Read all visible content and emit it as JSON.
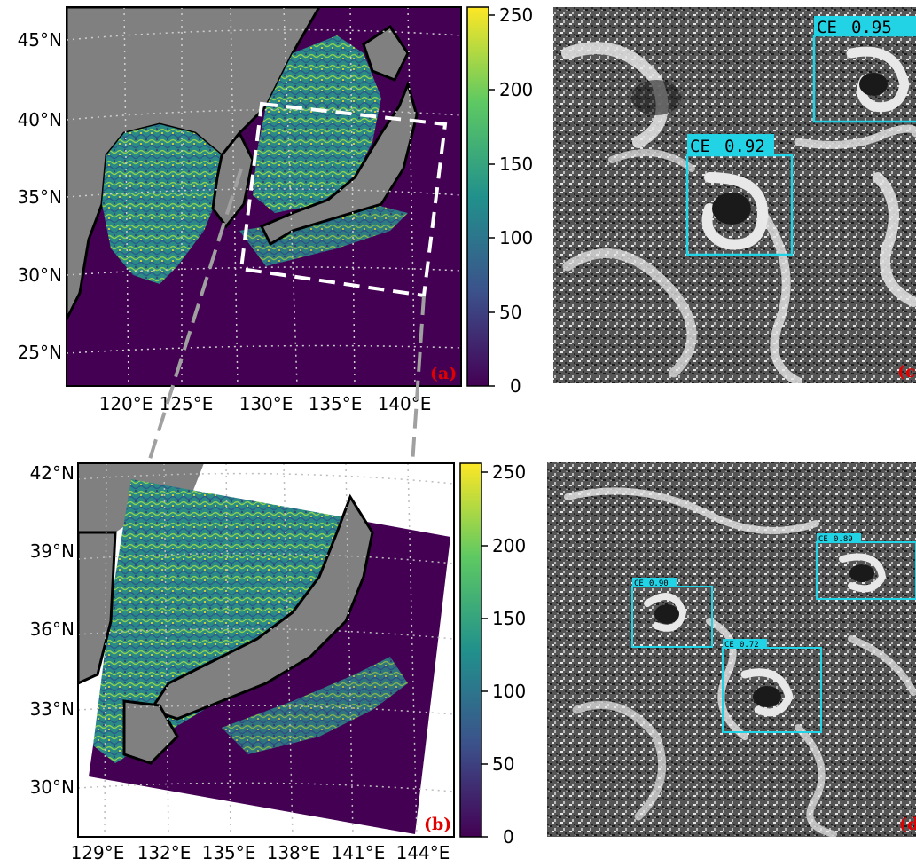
{
  "panels": {
    "a": {
      "tag": "(a)",
      "lat_labels": [
        "45°N",
        "40°N",
        "35°N",
        "30°N",
        "25°N"
      ],
      "lon_labels": [
        "120°E",
        "125°E",
        "130°E",
        "135°E",
        "140°E"
      ],
      "colorbar_ticks": [
        "250",
        "200",
        "150",
        "100",
        "50",
        "0"
      ]
    },
    "b": {
      "tag": "(b)",
      "lat_labels": [
        "42°N",
        "39°N",
        "36°N",
        "33°N",
        "30°N"
      ],
      "lon_labels": [
        "129°E",
        "132°E",
        "135°E",
        "138°E",
        "141°E",
        "144°E"
      ],
      "colorbar_ticks": [
        "250",
        "200",
        "150",
        "100",
        "50",
        "0"
      ]
    },
    "c": {
      "tag": "(c",
      "detections": [
        {
          "label": "CE",
          "score": "0.95"
        },
        {
          "label": "CE",
          "score": "0.92"
        }
      ]
    },
    "d": {
      "tag": "(d",
      "detections": [
        {
          "label": "CE",
          "score": "0.89"
        },
        {
          "label": "CE",
          "score": "0.90"
        },
        {
          "label": "CE",
          "score": "0.72"
        }
      ]
    }
  },
  "colors": {
    "land": "#808080",
    "ocean_low": "#440154",
    "field_mid": "#21918c",
    "field_high": "#fde725",
    "box": "#ffffff",
    "detection_box": "#22d3e6",
    "tag": "#e00000",
    "link_dash": "#a0a0a0"
  }
}
